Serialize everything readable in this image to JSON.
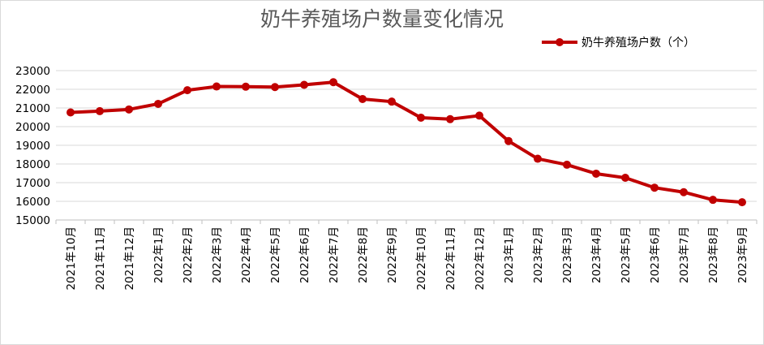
{
  "chart_data": {
    "type": "line",
    "title": "奶牛养殖场户数量变化情况",
    "xlabel": "",
    "ylabel": "",
    "ylim": [
      15000,
      23000
    ],
    "yticks": [
      15000,
      16000,
      17000,
      18000,
      19000,
      20000,
      21000,
      22000,
      23000
    ],
    "grid": true,
    "legend_position": "top-right",
    "categories": [
      "2021年10月",
      "2021年11月",
      "2021年12月",
      "2022年1月",
      "2022年2月",
      "2022年3月",
      "2022年4月",
      "2022年5月",
      "2022年6月",
      "2022年7月",
      "2022年8月",
      "2022年9月",
      "2022年10月",
      "2022年11月",
      "2022年12月",
      "2023年1月",
      "2023年2月",
      "2023年3月",
      "2023年4月",
      "2023年5月",
      "2023年6月",
      "2023年7月",
      "2023年8月",
      "2023年9月"
    ],
    "series": [
      {
        "name": "奶牛养殖场户数（个）",
        "color": "#c00000",
        "values": [
          20760,
          20830,
          20920,
          21220,
          21950,
          22150,
          22140,
          22120,
          22240,
          22380,
          21480,
          21340,
          20480,
          20400,
          20590,
          19230,
          18280,
          17960,
          17480,
          17260,
          16730,
          16490,
          16080,
          15950
        ]
      }
    ]
  }
}
